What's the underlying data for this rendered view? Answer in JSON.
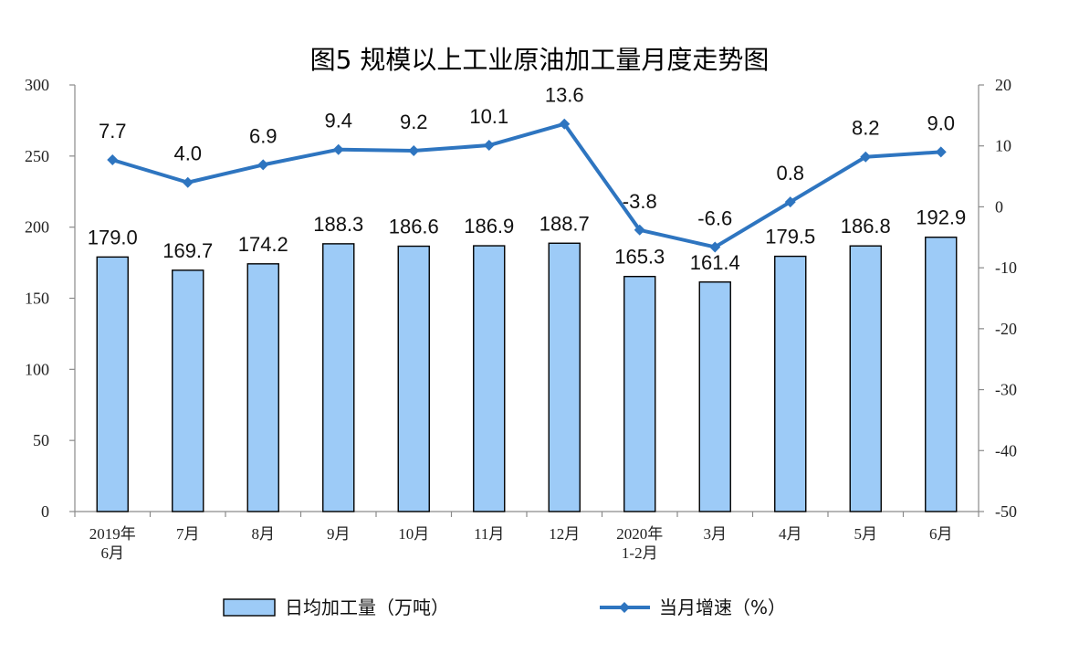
{
  "chart_data": {
    "type": "bar+line",
    "title": "图5  规模以上工业原油加工量月度走势图",
    "categories": [
      [
        "2019年",
        "6月"
      ],
      [
        "7月"
      ],
      [
        "8月"
      ],
      [
        "9月"
      ],
      [
        "10月"
      ],
      [
        "11月"
      ],
      [
        "12月"
      ],
      [
        "2020年",
        "1-2月"
      ],
      [
        "3月"
      ],
      [
        "4月"
      ],
      [
        "5月"
      ],
      [
        "6月"
      ]
    ],
    "series": [
      {
        "name": "日均加工量（万吨）",
        "type": "bar",
        "axis": "left",
        "color": "#9DCBF7",
        "values": [
          179.0,
          169.7,
          174.2,
          188.3,
          186.6,
          186.9,
          188.7,
          165.3,
          161.4,
          179.5,
          186.8,
          192.9
        ],
        "labels": [
          "179.0",
          "169.7",
          "174.2",
          "188.3",
          "186.6",
          "186.9",
          "188.7",
          "165.3",
          "161.4",
          "179.5",
          "186.8",
          "192.9"
        ]
      },
      {
        "name": "当月增速（%）",
        "type": "line",
        "axis": "right",
        "color": "#2E75C0",
        "values": [
          7.7,
          4.0,
          6.9,
          9.4,
          9.2,
          10.1,
          13.6,
          -3.8,
          -6.6,
          0.8,
          8.2,
          9.0
        ],
        "labels": [
          "7.7",
          "4.0",
          "6.9",
          "9.4",
          "9.2",
          "10.1",
          "13.6",
          "-3.8",
          "-6.6",
          "0.8",
          "8.2",
          "9.0"
        ]
      }
    ],
    "y_left": {
      "lim": [
        0,
        300
      ],
      "ticks": [
        "0",
        "50",
        "100",
        "150",
        "200",
        "250",
        "300"
      ]
    },
    "y_right": {
      "lim": [
        -50,
        20
      ],
      "ticks": [
        "-50",
        "-40",
        "-30",
        "-20",
        "-10",
        "0",
        "10",
        "20"
      ]
    },
    "grid": false,
    "legend": "bottom"
  }
}
